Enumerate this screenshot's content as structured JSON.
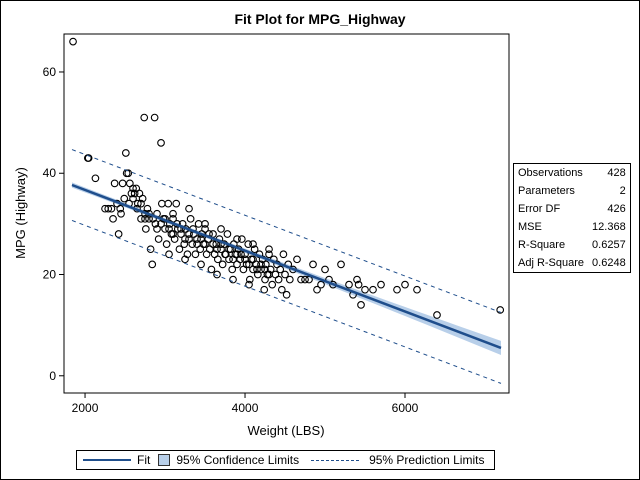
{
  "chart_data": {
    "type": "scatter",
    "title": "Fit Plot for MPG_Highway",
    "xlabel": "Weight (LBS)",
    "ylabel": "MPG (Highway)",
    "xlim": [
      1737,
      7300
    ],
    "ylim": [
      -3.4,
      67.5
    ],
    "x_ticks": [
      2000,
      4000,
      6000
    ],
    "y_ticks": [
      0,
      20,
      40,
      60
    ],
    "grid": false,
    "fit": {
      "intercept": 48.7,
      "slope": -0.006,
      "conf_halfwidth_min": 0.4,
      "conf_halfwidth_max": 1.4,
      "pred_halfwidth": 7.0,
      "x_range": [
        1837,
        7200
      ]
    },
    "legend": {
      "placement": "bottom",
      "entries": [
        "Fit",
        "95% Confidence Limits",
        "95% Prediction Limits"
      ]
    },
    "stats": [
      {
        "label": "Observations",
        "value": "428"
      },
      {
        "label": "Parameters",
        "value": "2"
      },
      {
        "label": "Error DF",
        "value": "426"
      },
      {
        "label": "MSE",
        "value": "12.368"
      },
      {
        "label": "R-Square",
        "value": "0.6257"
      },
      {
        "label": "Adj R-Square",
        "value": "0.6248"
      }
    ],
    "points": [
      [
        1850,
        66
      ],
      [
        2035,
        43
      ],
      [
        2045,
        43
      ],
      [
        2130,
        39
      ],
      [
        2250,
        33
      ],
      [
        2290,
        33
      ],
      [
        2330,
        33
      ],
      [
        2370,
        38
      ],
      [
        2400,
        34
      ],
      [
        2420,
        28
      ],
      [
        2440,
        33
      ],
      [
        2470,
        38
      ],
      [
        2490,
        35
      ],
      [
        2510,
        44
      ],
      [
        2520,
        40
      ],
      [
        2540,
        40
      ],
      [
        2560,
        38
      ],
      [
        2580,
        36
      ],
      [
        2600,
        37
      ],
      [
        2620,
        36
      ],
      [
        2640,
        37
      ],
      [
        2660,
        34
      ],
      [
        2680,
        36
      ],
      [
        2700,
        31
      ],
      [
        2720,
        35
      ],
      [
        2740,
        51
      ],
      [
        2750,
        31
      ],
      [
        2760,
        29
      ],
      [
        2780,
        33
      ],
      [
        2800,
        31
      ],
      [
        2820,
        25
      ],
      [
        2840,
        22
      ],
      [
        2870,
        51
      ],
      [
        2880,
        30
      ],
      [
        2900,
        29
      ],
      [
        2920,
        27
      ],
      [
        2950,
        46
      ],
      [
        2960,
        34
      ],
      [
        2980,
        31
      ],
      [
        3000,
        29
      ],
      [
        3020,
        26
      ],
      [
        3040,
        34
      ],
      [
        3060,
        30
      ],
      [
        3080,
        28
      ],
      [
        3100,
        31
      ],
      [
        3120,
        27
      ],
      [
        3140,
        34
      ],
      [
        3160,
        29
      ],
      [
        3180,
        25
      ],
      [
        3200,
        28
      ],
      [
        3220,
        30
      ],
      [
        3240,
        26
      ],
      [
        3260,
        29
      ],
      [
        3280,
        24
      ],
      [
        3300,
        27
      ],
      [
        3320,
        31
      ],
      [
        3340,
        26
      ],
      [
        3360,
        28
      ],
      [
        3380,
        24
      ],
      [
        3400,
        27
      ],
      [
        3420,
        30
      ],
      [
        3440,
        25
      ],
      [
        3460,
        28
      ],
      [
        3480,
        26
      ],
      [
        3500,
        29
      ],
      [
        3520,
        24
      ],
      [
        3540,
        27
      ],
      [
        3560,
        25
      ],
      [
        3580,
        21
      ],
      [
        3600,
        28
      ],
      [
        3620,
        24
      ],
      [
        3640,
        26
      ],
      [
        3660,
        23
      ],
      [
        3680,
        27
      ],
      [
        3700,
        25
      ],
      [
        3720,
        22
      ],
      [
        3740,
        26
      ],
      [
        3760,
        24
      ],
      [
        3780,
        28
      ],
      [
        3800,
        23
      ],
      [
        3820,
        25
      ],
      [
        3840,
        21
      ],
      [
        3860,
        26
      ],
      [
        3880,
        24
      ],
      [
        3900,
        22
      ],
      [
        3920,
        25
      ],
      [
        3940,
        23
      ],
      [
        3960,
        27
      ],
      [
        3980,
        21
      ],
      [
        4000,
        24
      ],
      [
        4020,
        22
      ],
      [
        4040,
        26
      ],
      [
        4060,
        19
      ],
      [
        4080,
        23
      ],
      [
        4100,
        21
      ],
      [
        4120,
        25
      ],
      [
        4140,
        22
      ],
      [
        4160,
        20
      ],
      [
        4180,
        24
      ],
      [
        4200,
        21
      ],
      [
        4220,
        23
      ],
      [
        4240,
        17
      ],
      [
        4260,
        22
      ],
      [
        4280,
        20
      ],
      [
        4300,
        24
      ],
      [
        4320,
        21
      ],
      [
        4340,
        18
      ],
      [
        4360,
        23
      ],
      [
        4380,
        20
      ],
      [
        4400,
        22
      ],
      [
        4420,
        19
      ],
      [
        4440,
        21
      ],
      [
        4460,
        17
      ],
      [
        4480,
        24
      ],
      [
        4500,
        20
      ],
      [
        4520,
        16
      ],
      [
        4540,
        22
      ],
      [
        4560,
        19
      ],
      [
        4600,
        21
      ],
      [
        4650,
        23
      ],
      [
        4700,
        19
      ],
      [
        4750,
        19
      ],
      [
        4800,
        19
      ],
      [
        4850,
        22
      ],
      [
        4900,
        17
      ],
      [
        4950,
        18
      ],
      [
        5000,
        21
      ],
      [
        5050,
        19
      ],
      [
        5100,
        18
      ],
      [
        5200,
        22
      ],
      [
        5300,
        18
      ],
      [
        5350,
        16
      ],
      [
        5400,
        19
      ],
      [
        5420,
        18
      ],
      [
        5450,
        14
      ],
      [
        5500,
        17
      ],
      [
        5600,
        17
      ],
      [
        5700,
        18
      ],
      [
        5900,
        17
      ],
      [
        6000,
        18
      ],
      [
        6150,
        17
      ],
      [
        6400,
        12
      ],
      [
        7190,
        13
      ],
      [
        2600,
        35
      ],
      [
        2650,
        33
      ],
      [
        2700,
        34
      ],
      [
        2750,
        32
      ],
      [
        2800,
        32
      ],
      [
        2850,
        31
      ],
      [
        2900,
        32
      ],
      [
        2950,
        30
      ],
      [
        3000,
        31
      ],
      [
        3050,
        29
      ],
      [
        3100,
        28
      ],
      [
        3150,
        30
      ],
      [
        3200,
        29
      ],
      [
        3250,
        27
      ],
      [
        3300,
        28
      ],
      [
        3350,
        29
      ],
      [
        3400,
        26
      ],
      [
        3450,
        27
      ],
      [
        3500,
        26
      ],
      [
        3550,
        28
      ],
      [
        3600,
        26
      ],
      [
        3650,
        25
      ],
      [
        3700,
        26
      ],
      [
        3750,
        24
      ],
      [
        3800,
        25
      ],
      [
        3850,
        23
      ],
      [
        3900,
        24
      ],
      [
        3950,
        24
      ],
      [
        4000,
        23
      ],
      [
        4050,
        22
      ],
      [
        4100,
        23
      ],
      [
        4150,
        21
      ],
      [
        4200,
        22
      ],
      [
        4250,
        21
      ],
      [
        4300,
        20
      ],
      [
        3100,
        32
      ],
      [
        3300,
        33
      ],
      [
        3500,
        30
      ],
      [
        3700,
        29
      ],
      [
        3900,
        27
      ],
      [
        4100,
        26
      ],
      [
        4300,
        25
      ],
      [
        3050,
        24
      ],
      [
        3250,
        23
      ],
      [
        3450,
        22
      ],
      [
        3650,
        20
      ],
      [
        3850,
        19
      ],
      [
        4050,
        18
      ],
      [
        4250,
        19
      ],
      [
        2450,
        32
      ],
      [
        2550,
        34
      ],
      [
        2350,
        31
      ]
    ]
  }
}
